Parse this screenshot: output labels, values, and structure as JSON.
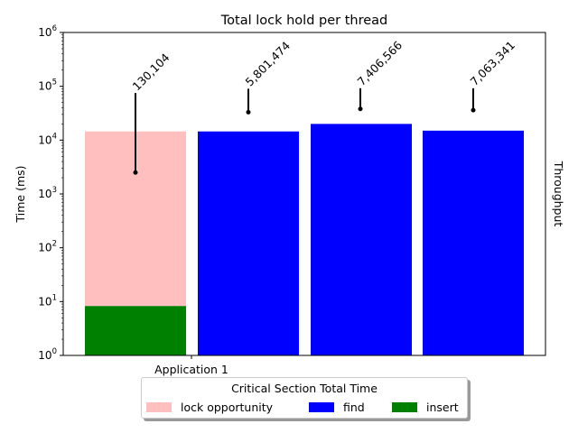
{
  "chart_data": {
    "type": "bar",
    "title": "Total lock hold per thread",
    "xlabel": "",
    "ylabel": "Time (ms)",
    "right_ylabel": "Throughput",
    "yscale": "log",
    "ylim": [
      1,
      1000000
    ],
    "yticks": [
      {
        "value": 1,
        "base": "10",
        "exp": "0"
      },
      {
        "value": 10,
        "base": "10",
        "exp": "1"
      },
      {
        "value": 100,
        "base": "10",
        "exp": "2"
      },
      {
        "value": 1000,
        "base": "10",
        "exp": "3"
      },
      {
        "value": 10000,
        "base": "10",
        "exp": "4"
      },
      {
        "value": 100000,
        "base": "10",
        "exp": "5"
      },
      {
        "value": 1000000,
        "base": "10",
        "exp": "6"
      }
    ],
    "xtick_label": "Application 1",
    "bars": [
      {
        "segments": [
          {
            "series": "insert",
            "value": 8.3
          },
          {
            "series": "lock opportunity",
            "value": 14500
          }
        ]
      },
      {
        "segments": [
          {
            "series": "find",
            "value": 14500
          }
        ]
      },
      {
        "segments": [
          {
            "series": "find",
            "value": 20000
          }
        ]
      },
      {
        "segments": [
          {
            "series": "find",
            "value": 15000
          }
        ]
      }
    ],
    "throughput": [
      {
        "label": "130,104",
        "low": 2500,
        "high": 75000
      },
      {
        "label": "5,801,474",
        "low": 33000,
        "high": 90000
      },
      {
        "label": "7,406,566",
        "low": 38000,
        "high": 92000
      },
      {
        "label": "7,063,341",
        "low": 36000,
        "high": 92000
      }
    ],
    "legend": {
      "title": "Critical Section Total Time",
      "entries": [
        {
          "name": "lock opportunity",
          "color": "#ffbfbf"
        },
        {
          "name": "find",
          "color": "#0000ff"
        },
        {
          "name": "insert",
          "color": "#008000"
        }
      ]
    },
    "colors": {
      "lock opportunity": "#ffbfbf",
      "find": "#0000ff",
      "insert": "#008000"
    }
  }
}
